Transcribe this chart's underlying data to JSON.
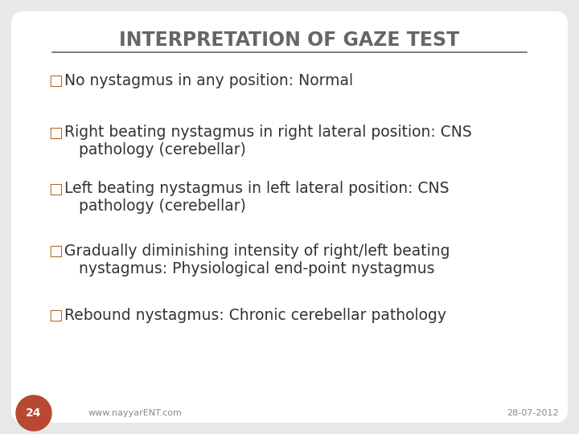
{
  "title": "INTERPRETATION OF GAZE TEST",
  "title_color": "#666666",
  "title_fontsize": 17,
  "background_color": "#e8e8e8",
  "slide_bg": "#ffffff",
  "bullet_color": "#b5651d",
  "text_color": "#333333",
  "items": [
    {
      "line1": "No nystagmus in any position: Normal",
      "line2": null
    },
    {
      "line1": "Right beating nystagmus in right lateral position: CNS",
      "line2": "pathology (cerebellar)"
    },
    {
      "line1": "Left beating nystagmus in left lateral position: CNS",
      "line2": "pathology (cerebellar)"
    },
    {
      "line1": "Gradually diminishing intensity of right/left beating",
      "line2": "nystagmus: Physiological end-point nystagmus"
    },
    {
      "line1": "Rebound nystagmus: Chronic cerebellar pathology",
      "line2": null
    }
  ],
  "footer_left": "www.nayyarENT.com",
  "footer_right": "28-07-2012",
  "footer_color": "#888888",
  "footer_fontsize": 8,
  "slide_number": "24",
  "slide_number_bg": "#b84830",
  "slide_number_color": "#ffffff",
  "item_fontsize": 13.5
}
